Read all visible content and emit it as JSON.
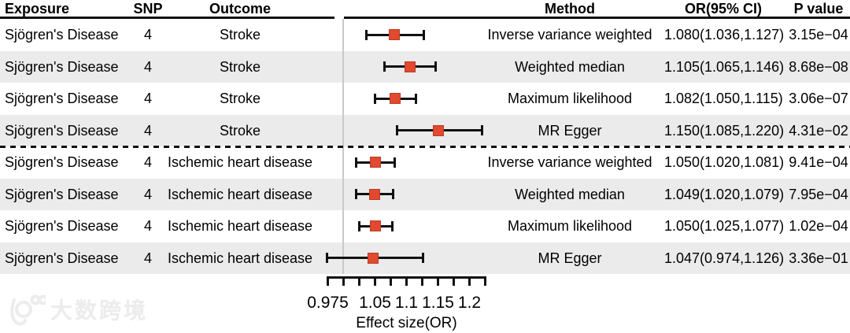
{
  "table": {
    "headers": {
      "exposure": "Exposure",
      "snp": "SNP",
      "outcome": "Outcome",
      "method": "Method",
      "or_ci": "OR(95% CI)",
      "p_value": "P value"
    },
    "rows": [
      {
        "exposure": "Sjögren's Disease",
        "snp": "4",
        "outcome": "Stroke",
        "method": "Inverse variance weighted",
        "or_ci": "1.080(1.036,1.127)",
        "p_value": "3.15e−04"
      },
      {
        "exposure": "Sjögren's Disease",
        "snp": "4",
        "outcome": "Stroke",
        "method": "Weighted median",
        "or_ci": "1.105(1.065,1.146)",
        "p_value": "8.68e−08"
      },
      {
        "exposure": "Sjögren's Disease",
        "snp": "4",
        "outcome": "Stroke",
        "method": "Maximum likelihood",
        "or_ci": "1.082(1.050,1.115)",
        "p_value": "3.06e−07"
      },
      {
        "exposure": "Sjögren's Disease",
        "snp": "4",
        "outcome": "Stroke",
        "method": "MR Egger",
        "or_ci": "1.150(1.085,1.220)",
        "p_value": "4.31e−02"
      },
      {
        "exposure": "Sjögren's Disease",
        "snp": "4",
        "outcome": "Ischemic heart disease",
        "method": "Inverse variance weighted",
        "or_ci": "1.050(1.020,1.081)",
        "p_value": "9.41e−04"
      },
      {
        "exposure": "Sjögren's Disease",
        "snp": "4",
        "outcome": "Ischemic heart disease",
        "method": "Weighted median",
        "or_ci": "1.049(1.020,1.079)",
        "p_value": "7.95e−04"
      },
      {
        "exposure": "Sjögren's Disease",
        "snp": "4",
        "outcome": "Ischemic heart disease",
        "method": "Maximum likelihood",
        "or_ci": "1.050(1.025,1.077)",
        "p_value": "1.02e−04"
      },
      {
        "exposure": "Sjögren's Disease",
        "snp": "4",
        "outcome": "Ischemic heart disease",
        "method": "MR Egger",
        "or_ci": "1.047(0.974,1.126)",
        "p_value": "3.36e−01"
      }
    ]
  },
  "chart_data": {
    "type": "forest",
    "xlabel": "Effect size(OR)",
    "x_axis": {
      "min": 0.975,
      "max": 1.225,
      "ticks": [
        0.975,
        1.0,
        1.025,
        1.05,
        1.075,
        1.1,
        1.125,
        1.15,
        1.175,
        1.2,
        1.225
      ],
      "tick_labels": [
        {
          "value": 0.975,
          "label": "0.975"
        },
        {
          "value": 1.05,
          "label": "1.05"
        },
        {
          "value": 1.1,
          "label": "1.1"
        },
        {
          "value": 1.15,
          "label": "1.15"
        },
        {
          "value": 1.2,
          "label": "1.2"
        }
      ]
    },
    "reference_line": 1.0,
    "rows": [
      {
        "outcome": "Stroke",
        "method": "Inverse variance weighted",
        "or": 1.08,
        "lo": 1.036,
        "hi": 1.127
      },
      {
        "outcome": "Stroke",
        "method": "Weighted median",
        "or": 1.105,
        "lo": 1.065,
        "hi": 1.146
      },
      {
        "outcome": "Stroke",
        "method": "Maximum likelihood",
        "or": 1.082,
        "lo": 1.05,
        "hi": 1.115
      },
      {
        "outcome": "Stroke",
        "method": "MR Egger",
        "or": 1.15,
        "lo": 1.085,
        "hi": 1.22
      },
      {
        "outcome": "Ischemic heart disease",
        "method": "Inverse variance weighted",
        "or": 1.05,
        "lo": 1.02,
        "hi": 1.081
      },
      {
        "outcome": "Ischemic heart disease",
        "method": "Weighted median",
        "or": 1.049,
        "lo": 1.02,
        "hi": 1.079
      },
      {
        "outcome": "Ischemic heart disease",
        "method": "Maximum likelihood",
        "or": 1.05,
        "lo": 1.025,
        "hi": 1.077
      },
      {
        "outcome": "Ischemic heart disease",
        "method": "MR Egger",
        "or": 1.047,
        "lo": 0.974,
        "hi": 1.126
      }
    ],
    "group_separator_after_row": 4
  },
  "colors": {
    "marker": "#e2492f",
    "stripe": "#ebebeb",
    "reference_line": "#c9c9c9",
    "line": "#111111"
  },
  "watermark": {
    "text": "大数跨境"
  }
}
